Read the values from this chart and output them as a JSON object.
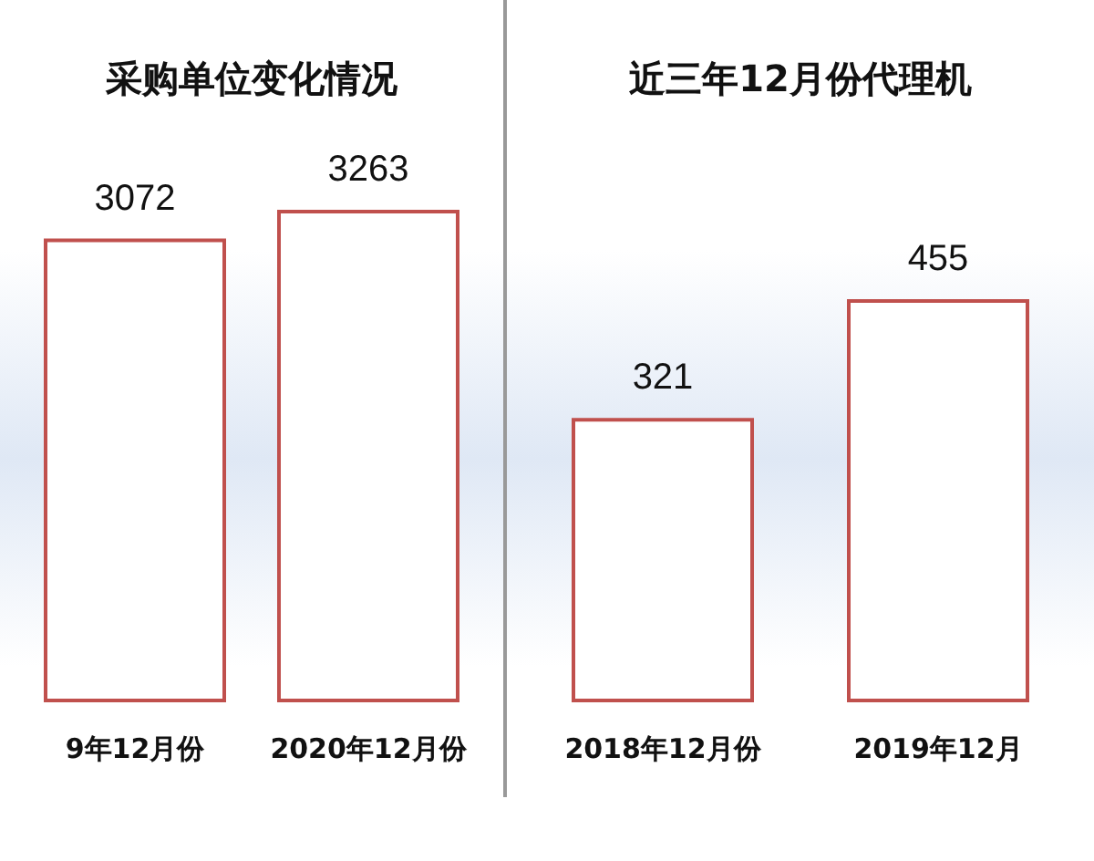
{
  "chart_data": [
    {
      "type": "bar",
      "title": "采购单位变化情况",
      "categories": [
        "9年12月份",
        "2020年12月份"
      ],
      "values": [
        3072,
        3263
      ],
      "color": "#c0504d",
      "data_labels": true
    },
    {
      "type": "bar",
      "title": "近三年12月份代理机",
      "categories": [
        "2018年12月份",
        "2019年12月"
      ],
      "values": [
        321,
        455
      ],
      "color": "#c0504d",
      "data_labels": true
    }
  ]
}
